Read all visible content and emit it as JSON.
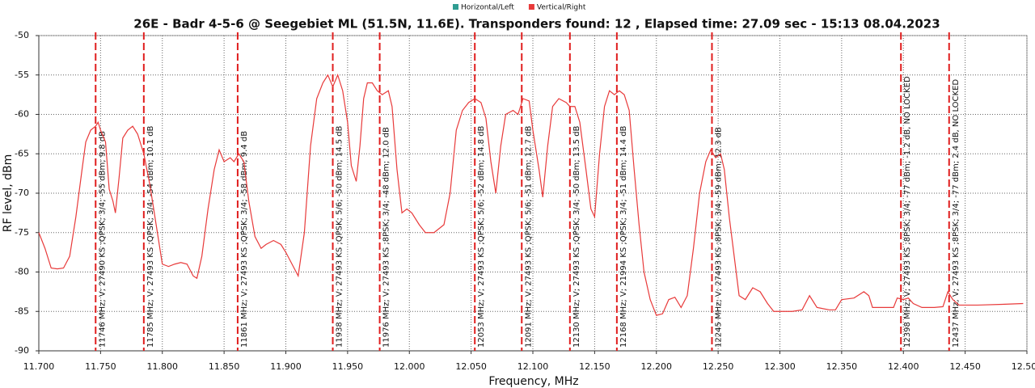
{
  "chart_data": {
    "type": "line",
    "title": "26E - Badr 4-5-6 @ Seegebiet ML (51.5N, 11.6E). Transponders found: 12 , Elapsed time: 27.09 sec - 15:13 08.04.2023",
    "xlabel": "Frequency, MHz",
    "ylabel": "RF level, dBm",
    "xlim": [
      11.7,
      12.5
    ],
    "ylim": [
      -90,
      -50
    ],
    "xticks": [
      {
        "value": 11.7,
        "label": "11.700"
      },
      {
        "value": 11.75,
        "label": "11.750"
      },
      {
        "value": 11.8,
        "label": "11.800"
      },
      {
        "value": 11.85,
        "label": "11.850"
      },
      {
        "value": 11.9,
        "label": "11.900"
      },
      {
        "value": 11.95,
        "label": "11.950"
      },
      {
        "value": 12.0,
        "label": "12.000"
      },
      {
        "value": 12.05,
        "label": "12.050"
      },
      {
        "value": 12.1,
        "label": "12.100"
      },
      {
        "value": 12.15,
        "label": "12.150"
      },
      {
        "value": 12.2,
        "label": "12.200"
      },
      {
        "value": 12.25,
        "label": "12.250"
      },
      {
        "value": 12.3,
        "label": "12.300"
      },
      {
        "value": 12.35,
        "label": "12.350"
      },
      {
        "value": 12.4,
        "label": "12.400"
      },
      {
        "value": 12.45,
        "label": "12.450"
      },
      {
        "value": 12.5,
        "label": "12.500"
      }
    ],
    "yticks": [
      -50,
      -55,
      -60,
      -65,
      -70,
      -75,
      -80,
      -85,
      -90
    ],
    "grid": true,
    "legend": "top",
    "series": [
      {
        "name": "Horizontal/Left",
        "color": "#2f9d92",
        "x": [],
        "values": []
      },
      {
        "name": "Vertical/Right",
        "color": "#e83a3a",
        "x": [
          11.7,
          11.705,
          11.71,
          11.715,
          11.72,
          11.725,
          11.73,
          11.735,
          11.738,
          11.742,
          11.746,
          11.748,
          11.75,
          11.754,
          11.757,
          11.76,
          11.762,
          11.765,
          11.768,
          11.772,
          11.776,
          11.78,
          11.785,
          11.79,
          11.795,
          11.8,
          11.805,
          11.81,
          11.815,
          11.82,
          11.825,
          11.828,
          11.832,
          11.837,
          11.842,
          11.846,
          11.85,
          11.855,
          11.858,
          11.862,
          11.866,
          11.87,
          11.875,
          11.88,
          11.884,
          11.89,
          11.896,
          11.9,
          11.905,
          11.91,
          11.915,
          11.92,
          11.925,
          11.93,
          11.934,
          11.938,
          11.942,
          11.946,
          11.95,
          11.953,
          11.957,
          11.96,
          11.963,
          11.966,
          11.97,
          11.974,
          11.978,
          11.983,
          11.986,
          11.99,
          11.994,
          11.998,
          12.002,
          12.008,
          12.013,
          12.02,
          12.028,
          12.033,
          12.038,
          12.043,
          12.048,
          12.053,
          12.058,
          12.062,
          12.066,
          12.07,
          12.074,
          12.078,
          12.084,
          12.088,
          12.092,
          12.097,
          12.1,
          12.105,
          12.108,
          12.112,
          12.116,
          12.121,
          12.127,
          12.13,
          12.134,
          12.138,
          12.143,
          12.147,
          12.15,
          12.154,
          12.158,
          12.162,
          12.166,
          12.17,
          12.174,
          12.178,
          12.182,
          12.186,
          12.19,
          12.195,
          12.2,
          12.205,
          12.21,
          12.215,
          12.22,
          12.225,
          12.23,
          12.235,
          12.24,
          12.244,
          12.248,
          12.252,
          12.255,
          12.259,
          12.263,
          12.267,
          12.272,
          12.278,
          12.284,
          12.29,
          12.295,
          12.3,
          12.31,
          12.318,
          12.324,
          12.33,
          12.34,
          12.345,
          12.35,
          12.36,
          12.368,
          12.372,
          12.375,
          12.385,
          12.392,
          12.395,
          12.4,
          12.404,
          12.408,
          12.415,
          12.425,
          12.432,
          12.436,
          12.44,
          12.445,
          12.46,
          12.48,
          12.497
        ],
        "values": [
          -75,
          -77,
          -79.5,
          -79.6,
          -79.5,
          -78,
          -73,
          -67,
          -63.5,
          -62,
          -61.5,
          -61,
          -62,
          -63.5,
          -69.5,
          -71,
          -72.5,
          -68,
          -63,
          -62,
          -61.5,
          -62.5,
          -65,
          -69,
          -74,
          -79,
          -79.3,
          -79,
          -78.8,
          -79,
          -80.5,
          -80.8,
          -78,
          -72,
          -67,
          -64.5,
          -66,
          -65.5,
          -66,
          -65,
          -66,
          -71,
          -75.5,
          -77,
          -76.5,
          -76,
          -76.5,
          -77.5,
          -79,
          -80.5,
          -75,
          -64,
          -58,
          -56,
          -55,
          -56.5,
          -55,
          -57,
          -61,
          -66.5,
          -68.5,
          -64,
          -58,
          -56,
          -56,
          -57,
          -57.5,
          -57,
          -59,
          -67,
          -72.5,
          -72,
          -72.5,
          -74,
          -75,
          -75,
          -74,
          -70,
          -62,
          -59.5,
          -58.5,
          -58,
          -58.5,
          -60.5,
          -66,
          -70,
          -64,
          -60,
          -59.5,
          -60,
          -58,
          -58.3,
          -62,
          -67,
          -70.5,
          -64,
          -59,
          -58,
          -58.5,
          -59,
          -59,
          -61,
          -67,
          -72,
          -73,
          -65,
          -59,
          -57,
          -57.5,
          -57,
          -57.5,
          -59.5,
          -67,
          -74,
          -80,
          -83.5,
          -85.5,
          -85.3,
          -83.5,
          -83.2,
          -84.5,
          -83,
          -77,
          -70,
          -66,
          -64.5,
          -65.5,
          -65,
          -67,
          -73,
          -78,
          -83,
          -83.5,
          -82,
          -82.5,
          -84,
          -85,
          -85,
          -85,
          -84.8,
          -83,
          -84.5,
          -84.8,
          -84.8,
          -83.5,
          -83.3,
          -82.5,
          -83,
          -84.5,
          -84.5,
          -84.5,
          -83.3,
          -83.5,
          -83.3,
          -84,
          -84.5,
          -84.5,
          -84.4,
          -82.5,
          -83.5,
          -84.2,
          -84.2,
          -84.1,
          -84
        ]
      }
    ],
    "markers": {
      "color": "#e01e1e",
      "x": [
        11.746,
        11.785,
        11.861,
        11.938,
        11.976,
        12.053,
        12.091,
        12.13,
        12.168,
        12.245,
        12.398,
        12.437
      ],
      "labels": [
        "11746 MHz; V; 27490 KS ;QPSK; 3/4; -55 dBm; 9.8 dB",
        "11785 MHz; V; 27493 KS ;QPSK; 3/4; -54 dBm; 10.1 dB",
        "11861 MHz; V; 27493 KS ;QPSK; 3/4; -58 dBm; 9.4 dB",
        "11938 MHz; V; 27493 KS ;QPSK; 5/6; -50 dBm; 14.5 dB",
        "11976 MHz; V; 27493 KS ;8PSK; 3/4; -48 dBm; 12.0 dB",
        "12053 MHz; V; 27493 KS ;QPSK; 5/6; -52 dBm; 14.8 dB",
        "12091 MHz; V; 27493 KS ;QPSK; 5/6; -51 dBm; 12.7 dB",
        "12130 MHz; V; 27493 KS ;QPSK; 3/4; -50 dBm; 13.5 dB",
        "12168 MHz; V; 21994 KS ;QPSK; 3/4; -51 dBm; 14.4 dB",
        "12245 MHz; V; 27493 KS ;8PSK; 3/4; -59 dBm; 12.3 dB",
        "12398 MHz; V; 27493 KS ;8PSK; 3/4; -77 dBm; -1.2 dB, NO LOCKED",
        "12437 MHz; V; 27493 KS ;8PSK; 3/4; -77 dBm; 2.4 dB, NO LOCKED"
      ]
    }
  }
}
